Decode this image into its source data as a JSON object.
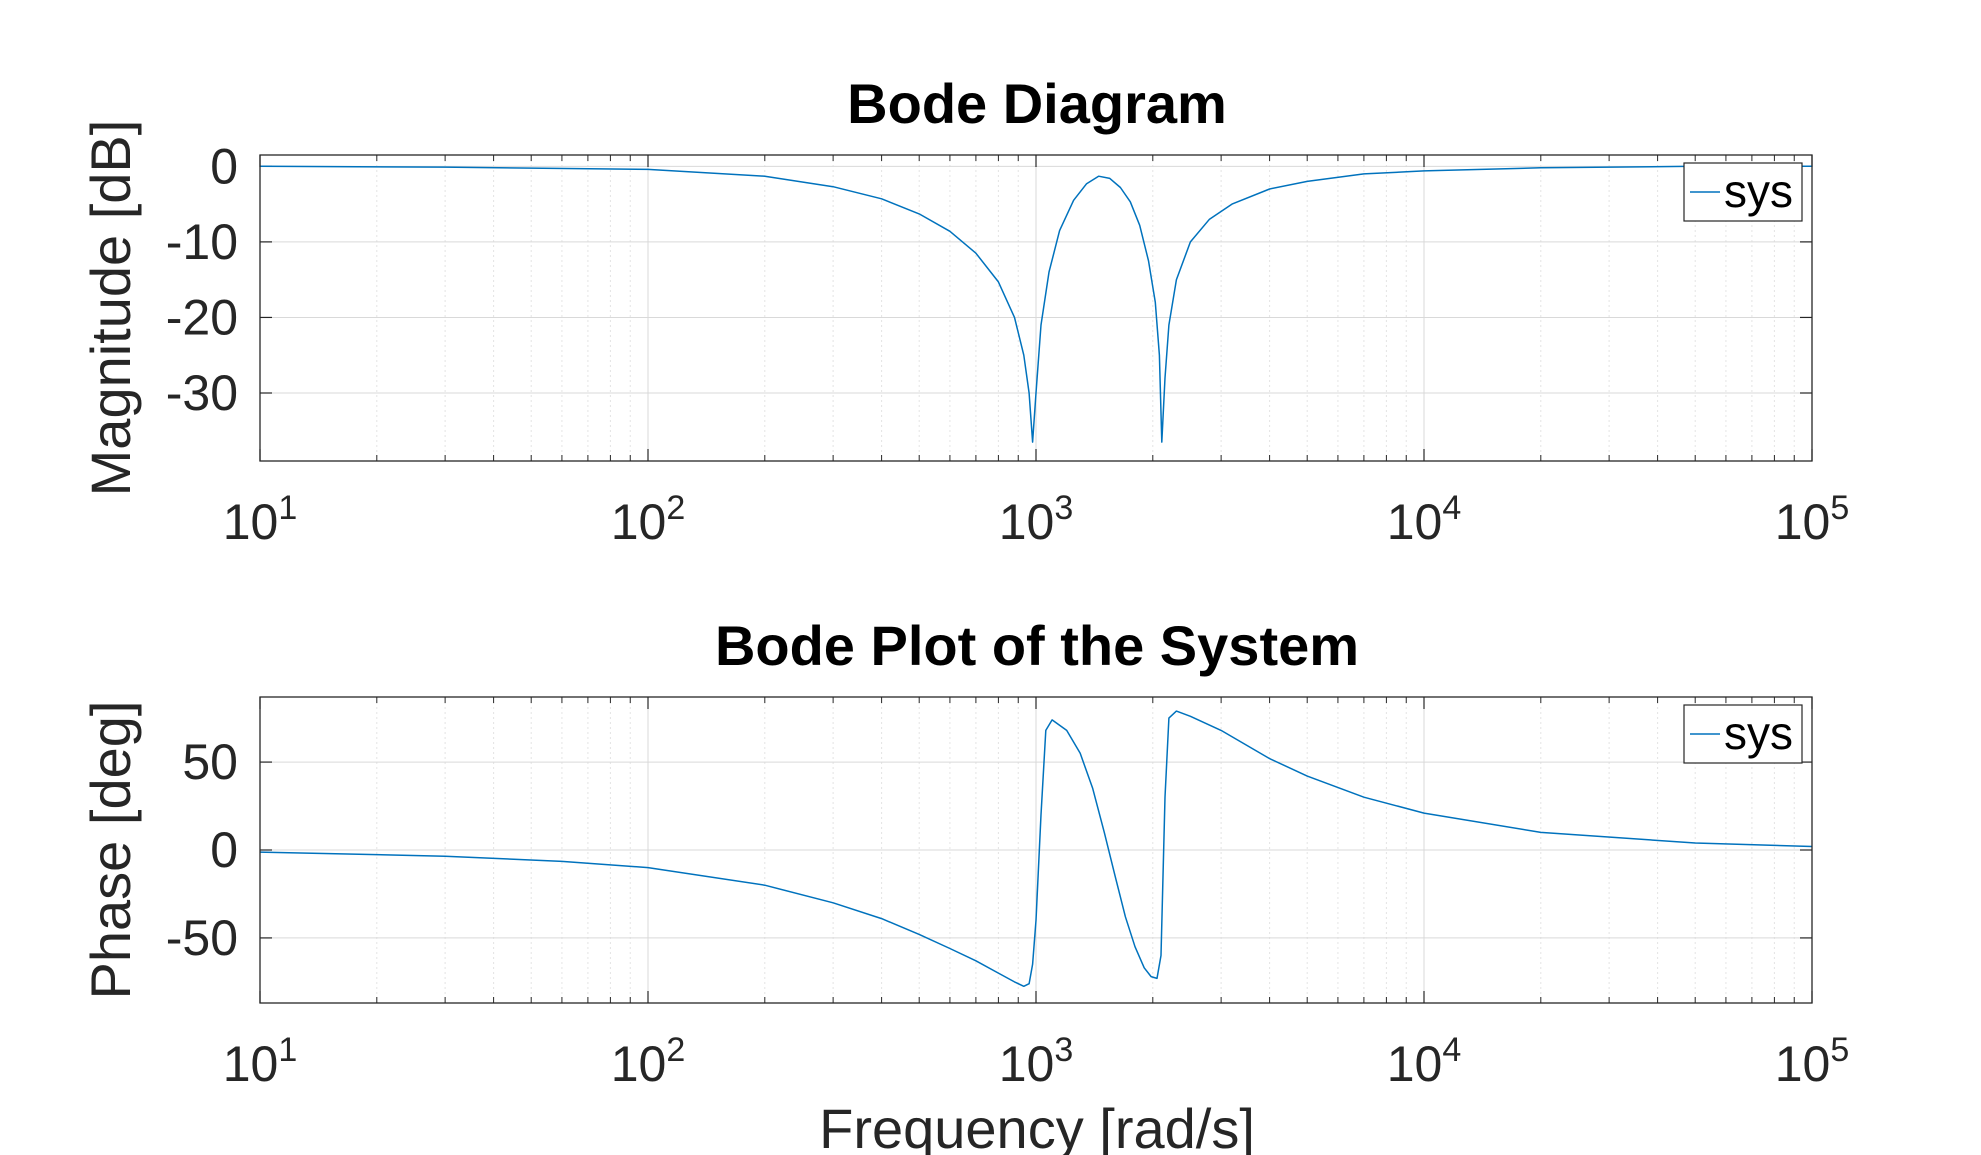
{
  "chart_data": [
    {
      "type": "line",
      "title": "Bode Diagram",
      "xlabel": "",
      "ylabel": "Magnitude [dB]",
      "xscale": "log",
      "xlim": [
        10,
        100000
      ],
      "ylim": [
        -39,
        1.5
      ],
      "x_ticks": [
        10,
        100,
        1000,
        10000,
        100000
      ],
      "x_tick_labels": [
        {
          "base": "10",
          "exp": "1"
        },
        {
          "base": "10",
          "exp": "2"
        },
        {
          "base": "10",
          "exp": "3"
        },
        {
          "base": "10",
          "exp": "4"
        },
        {
          "base": "10",
          "exp": "5"
        }
      ],
      "y_ticks": [
        0,
        -10,
        -20,
        -30
      ],
      "y_tick_labels": [
        "0",
        "-10",
        "-20",
        "-30"
      ],
      "grid": true,
      "legend": "top-right",
      "series": [
        {
          "name": "sys",
          "color": "#0072BD",
          "x": [
            10,
            30,
            100,
            200,
            300,
            400,
            500,
            600,
            700,
            800,
            880,
            930,
            960,
            980,
            1000,
            1030,
            1080,
            1150,
            1250,
            1350,
            1450,
            1550,
            1650,
            1750,
            1850,
            1950,
            2030,
            2080,
            2110,
            2150,
            2200,
            2300,
            2500,
            2800,
            3200,
            4000,
            5000,
            7000,
            10000,
            20000,
            50000,
            100000
          ],
          "y": [
            0,
            -0.1,
            -0.4,
            -1.3,
            -2.7,
            -4.3,
            -6.3,
            -8.6,
            -11.5,
            -15.3,
            -20,
            -25,
            -30,
            -36.5,
            -30,
            -21,
            -14,
            -8.5,
            -4.5,
            -2.3,
            -1.3,
            -1.6,
            -2.8,
            -4.7,
            -7.8,
            -12.5,
            -18,
            -25,
            -36.5,
            -28,
            -21,
            -15,
            -10,
            -7,
            -5,
            -3,
            -2,
            -1,
            -0.6,
            -0.2,
            0,
            0
          ]
        }
      ]
    },
    {
      "type": "line",
      "title": "Bode Plot of the System",
      "xlabel": "Frequency [rad/s]",
      "ylabel": "Phase [deg]",
      "xscale": "log",
      "xlim": [
        10,
        100000
      ],
      "ylim": [
        -87,
        87
      ],
      "x_ticks": [
        10,
        100,
        1000,
        10000,
        100000
      ],
      "x_tick_labels": [
        {
          "base": "10",
          "exp": "1"
        },
        {
          "base": "10",
          "exp": "2"
        },
        {
          "base": "10",
          "exp": "3"
        },
        {
          "base": "10",
          "exp": "4"
        },
        {
          "base": "10",
          "exp": "5"
        }
      ],
      "y_ticks": [
        50,
        0,
        -50
      ],
      "y_tick_labels": [
        "50",
        "0",
        "-50"
      ],
      "grid": true,
      "legend": "top-right",
      "series": [
        {
          "name": "sys",
          "color": "#0072BD",
          "x": [
            10,
            30,
            60,
            100,
            200,
            300,
            400,
            500,
            600,
            700,
            800,
            880,
            930,
            960,
            980,
            1000,
            1030,
            1060,
            1100,
            1200,
            1300,
            1400,
            1500,
            1600,
            1700,
            1800,
            1900,
            1980,
            2050,
            2100,
            2150,
            2200,
            2300,
            2500,
            3000,
            4000,
            5000,
            7000,
            10000,
            20000,
            50000,
            100000
          ],
          "y": [
            -1.2,
            -3.5,
            -6.5,
            -10,
            -20,
            -30,
            -39,
            -48,
            -56,
            -63,
            -70,
            -75,
            -77.5,
            -76,
            -65,
            -40,
            20,
            68,
            74,
            68,
            55,
            35,
            10,
            -15,
            -38,
            -55,
            -67,
            -72,
            -73,
            -60,
            30,
            75,
            79,
            76,
            68,
            52,
            42,
            30,
            21,
            10,
            4,
            2
          ]
        }
      ]
    }
  ]
}
